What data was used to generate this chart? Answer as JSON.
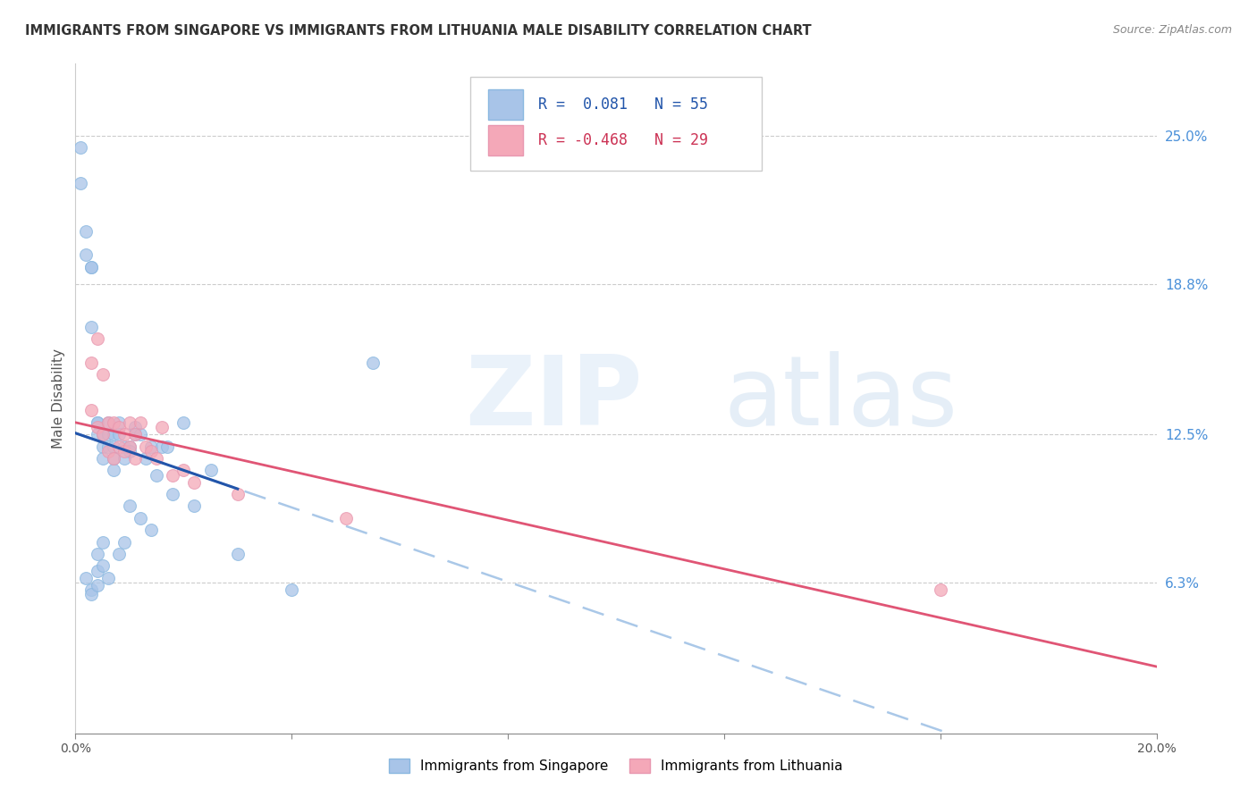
{
  "title": "IMMIGRANTS FROM SINGAPORE VS IMMIGRANTS FROM LITHUANIA MALE DISABILITY CORRELATION CHART",
  "source": "Source: ZipAtlas.com",
  "ylabel": "Male Disability",
  "ytick_labels": [
    "25.0%",
    "18.8%",
    "12.5%",
    "6.3%"
  ],
  "ytick_values": [
    0.25,
    0.188,
    0.125,
    0.063
  ],
  "xlim": [
    0.0,
    0.2
  ],
  "ylim": [
    0.0,
    0.28
  ],
  "legend_r_singapore": "0.081",
  "legend_n_singapore": "55",
  "legend_r_lithuania": "-0.468",
  "legend_n_lithuania": "29",
  "singapore_color": "#a8c4e8",
  "lithuania_color": "#f4a8b8",
  "trend_singapore_color": "#2255aa",
  "trend_lithuania_color": "#e05575",
  "singapore_x": [
    0.001,
    0.001,
    0.002,
    0.002,
    0.002,
    0.003,
    0.003,
    0.003,
    0.003,
    0.003,
    0.004,
    0.004,
    0.004,
    0.004,
    0.004,
    0.004,
    0.005,
    0.005,
    0.005,
    0.005,
    0.005,
    0.006,
    0.006,
    0.006,
    0.006,
    0.007,
    0.007,
    0.007,
    0.007,
    0.008,
    0.008,
    0.008,
    0.009,
    0.009,
    0.009,
    0.01,
    0.01,
    0.01,
    0.011,
    0.011,
    0.012,
    0.012,
    0.013,
    0.014,
    0.014,
    0.015,
    0.016,
    0.017,
    0.018,
    0.02,
    0.022,
    0.025,
    0.03,
    0.04,
    0.055
  ],
  "singapore_y": [
    0.245,
    0.23,
    0.21,
    0.2,
    0.065,
    0.195,
    0.195,
    0.06,
    0.17,
    0.058,
    0.125,
    0.13,
    0.13,
    0.075,
    0.068,
    0.062,
    0.125,
    0.12,
    0.115,
    0.08,
    0.07,
    0.13,
    0.125,
    0.12,
    0.065,
    0.125,
    0.12,
    0.115,
    0.11,
    0.13,
    0.125,
    0.075,
    0.12,
    0.115,
    0.08,
    0.12,
    0.118,
    0.095,
    0.125,
    0.128,
    0.125,
    0.09,
    0.115,
    0.12,
    0.085,
    0.108,
    0.12,
    0.12,
    0.1,
    0.13,
    0.095,
    0.11,
    0.075,
    0.06,
    0.155
  ],
  "lithuania_x": [
    0.003,
    0.003,
    0.004,
    0.004,
    0.005,
    0.005,
    0.006,
    0.006,
    0.007,
    0.007,
    0.008,
    0.008,
    0.009,
    0.009,
    0.01,
    0.01,
    0.011,
    0.011,
    0.012,
    0.013,
    0.014,
    0.015,
    0.016,
    0.018,
    0.02,
    0.022,
    0.03,
    0.05,
    0.16
  ],
  "lithuania_y": [
    0.155,
    0.135,
    0.165,
    0.128,
    0.15,
    0.125,
    0.13,
    0.118,
    0.13,
    0.115,
    0.128,
    0.12,
    0.125,
    0.118,
    0.13,
    0.12,
    0.125,
    0.115,
    0.13,
    0.12,
    0.118,
    0.115,
    0.128,
    0.108,
    0.11,
    0.105,
    0.1,
    0.09,
    0.06
  ]
}
